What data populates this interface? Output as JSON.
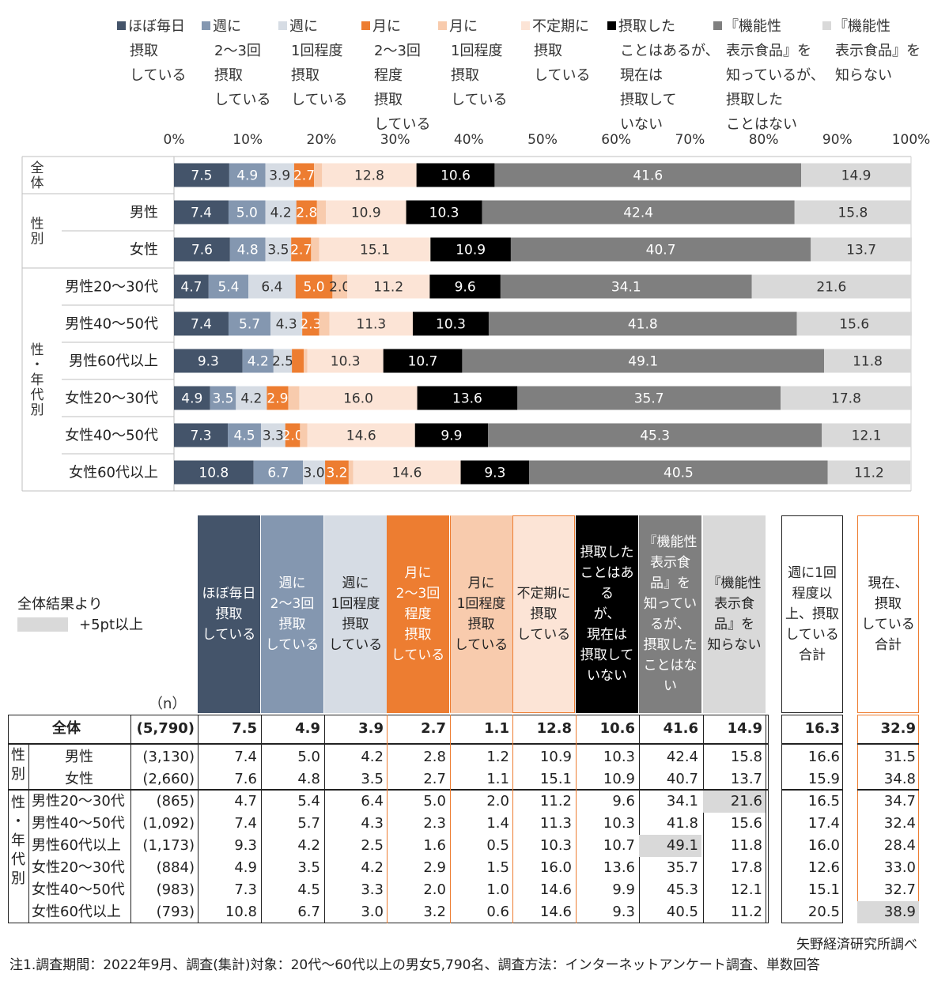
{
  "chart_data": {
    "type": "bar",
    "orientation": "horizontal",
    "stacked": true,
    "xlim": [
      0,
      100
    ],
    "x_ticks": [
      "0%",
      "10%",
      "20%",
      "30%",
      "40%",
      "50%",
      "60%",
      "70%",
      "80%",
      "90%",
      "100%"
    ],
    "groups": [
      {
        "label": "全体",
        "rows": [
          "全体"
        ]
      },
      {
        "label": "性別",
        "rows": [
          "男性",
          "女性"
        ]
      },
      {
        "label": "性・年代別",
        "rows": [
          "男性20～30代",
          "男性40～50代",
          "男性60代以上",
          "女性20～30代",
          "女性40～50代",
          "女性60代以上"
        ]
      }
    ],
    "categories": [
      "全体",
      "男性",
      "女性",
      "男性20～30代",
      "男性40～50代",
      "男性60代以上",
      "女性20～30代",
      "女性40～50代",
      "女性60代以上"
    ],
    "category_labels": [
      "",
      "男性",
      "女性",
      "男性20～30代",
      "男性40～50代",
      "男性60代以上",
      "女性20～30代",
      "女性40～50代",
      "女性60代以上"
    ],
    "series": [
      {
        "name": "ほぼ毎日\n摂取\nしている",
        "color": "#44546a",
        "values": [
          7.5,
          7.4,
          7.6,
          4.7,
          7.4,
          9.3,
          4.9,
          7.3,
          10.8
        ]
      },
      {
        "name": "週に\n2～3回\n摂取\nしている",
        "color": "#8497b0",
        "values": [
          4.9,
          5.0,
          4.8,
          5.4,
          5.7,
          4.2,
          3.5,
          4.5,
          6.7
        ]
      },
      {
        "name": "週に\n1回程度\n摂取\nしている",
        "color": "#d6dce4",
        "values": [
          3.9,
          4.2,
          3.5,
          6.4,
          4.3,
          2.5,
          4.2,
          3.3,
          3.0
        ]
      },
      {
        "name": "月に\n2～3回\n程度\n摂取\nしている",
        "color": "#ed7d31",
        "values": [
          2.7,
          2.8,
          2.7,
          5.0,
          2.3,
          1.6,
          2.9,
          2.0,
          3.2
        ]
      },
      {
        "name": "月に\n1回程度\n摂取\nしている",
        "color": "#f8cbad",
        "values": [
          1.1,
          1.2,
          1.1,
          2.0,
          1.4,
          0.5,
          1.5,
          1.0,
          0.6
        ]
      },
      {
        "name": "不定期に\n摂取\nしている",
        "color": "#fce4d6",
        "values": [
          12.8,
          10.9,
          15.1,
          11.2,
          11.3,
          10.3,
          16.0,
          14.6,
          14.6
        ]
      },
      {
        "name": "摂取した\nことはあるが、\n現在は\n摂取して\nいない",
        "color": "#000000",
        "values": [
          10.6,
          10.3,
          10.9,
          9.6,
          10.3,
          10.7,
          13.6,
          9.9,
          9.3
        ]
      },
      {
        "name": "『機能性\n表示食品』を\n知っているが、\n摂取した\nことはない",
        "color": "#7f7f7f",
        "values": [
          41.6,
          42.4,
          40.7,
          34.1,
          41.8,
          49.1,
          35.7,
          45.3,
          40.5
        ]
      },
      {
        "name": "『機能性\n表示食品』を\n知らない",
        "color": "#d9d9d9",
        "values": [
          14.9,
          15.8,
          13.7,
          21.6,
          15.6,
          11.8,
          17.8,
          12.1,
          11.2
        ]
      }
    ],
    "data_labels": [
      [
        "7.5",
        "4.9",
        "3.9",
        "2.7",
        "",
        "12.8",
        "10.6",
        "41.6",
        "14.9"
      ],
      [
        "7.4",
        "5.0",
        "4.2",
        "2.8",
        "",
        "10.9",
        "10.3",
        "42.4",
        "15.8"
      ],
      [
        "7.6",
        "4.8",
        "3.5",
        "2.7",
        "",
        "15.1",
        "10.9",
        "40.7",
        "13.7"
      ],
      [
        "4.7",
        "5.4",
        "6.4",
        "5.0",
        "2.0",
        "11.2",
        "9.6",
        "34.1",
        "21.6"
      ],
      [
        "7.4",
        "5.7",
        "4.3",
        "2.3",
        "",
        "11.3",
        "10.3",
        "41.8",
        "15.6"
      ],
      [
        "9.3",
        "4.2",
        "2.5",
        "",
        "",
        "10.3",
        "10.7",
        "49.1",
        "11.8"
      ],
      [
        "4.9",
        "3.5",
        "4.2",
        "2.9",
        "",
        "16.0",
        "13.6",
        "35.7",
        "17.8"
      ],
      [
        "7.3",
        "4.5",
        "3.3",
        "2.0",
        "",
        "14.6",
        "9.9",
        "45.3",
        "12.1"
      ],
      [
        "10.8",
        "6.7",
        "3.0",
        "3.2",
        "",
        "14.6",
        "9.3",
        "40.5",
        "11.2"
      ]
    ]
  },
  "table": {
    "legend_note": "全体結果より",
    "legend_highlight": "+5pt以上",
    "n_header": "（n）",
    "headers": [
      {
        "text": "ほぼ毎日\n摂取\nしている",
        "bg": "#44546a",
        "fg": "#ffffff"
      },
      {
        "text": "週に\n2～3回\n摂取\nしている",
        "bg": "#8497b0",
        "fg": "#ffffff"
      },
      {
        "text": "週に\n1回程度\n摂取\nしている",
        "bg": "#d6dce4",
        "fg": "#222222"
      },
      {
        "text": "月に\n2～3回\n程度\n摂取\nしている",
        "bg": "#ed7d31",
        "fg": "#ffffff"
      },
      {
        "text": "月に\n1回程度\n摂取\nしている",
        "bg": "#f8cbad",
        "fg": "#222222"
      },
      {
        "text": "不定期に\n摂取\nしている",
        "bg": "#fce4d6",
        "fg": "#222222"
      },
      {
        "text": "摂取した\nことはある\nが、\n現在は\n摂取して\nいない",
        "bg": "#000000",
        "fg": "#ffffff"
      },
      {
        "text": "『機能性\n表示食\n品』を\n知ってい\nるが、\n摂取した\nことはない",
        "bg": "#7f7f7f",
        "fg": "#ffffff"
      },
      {
        "text": "『機能性\n表示食\n品』を\n知らない",
        "bg": "#d9d9d9",
        "fg": "#222222"
      }
    ],
    "extra_headers": [
      "週に1回\n程度以\n上、摂取\nしている\n合計",
      "現在、\n摂取\nしている\n合計"
    ],
    "groups": [
      {
        "label": "性\n別",
        "rows": [
          1,
          2
        ]
      },
      {
        "label": "性\n・\n年\n代\n別",
        "rows": [
          3,
          4,
          5,
          6,
          7,
          8
        ]
      }
    ],
    "rows": [
      {
        "label": "全体",
        "n": "(5,790)",
        "values": [
          "7.5",
          "4.9",
          "3.9",
          "2.7",
          "1.1",
          "12.8",
          "10.6",
          "41.6",
          "14.9"
        ],
        "extra": [
          "16.3",
          "32.9"
        ],
        "bold": true,
        "hl": []
      },
      {
        "label": "男性",
        "n": "(3,130)",
        "values": [
          "7.4",
          "5.0",
          "4.2",
          "2.8",
          "1.2",
          "10.9",
          "10.3",
          "42.4",
          "15.8"
        ],
        "extra": [
          "16.6",
          "31.5"
        ],
        "hl": []
      },
      {
        "label": "女性",
        "n": "(2,660)",
        "values": [
          "7.6",
          "4.8",
          "3.5",
          "2.7",
          "1.1",
          "15.1",
          "10.9",
          "40.7",
          "13.7"
        ],
        "extra": [
          "15.9",
          "34.8"
        ],
        "hl": []
      },
      {
        "label": "男性20～30代",
        "n": "(865)",
        "values": [
          "4.7",
          "5.4",
          "6.4",
          "5.0",
          "2.0",
          "11.2",
          "9.6",
          "34.1",
          "21.6"
        ],
        "extra": [
          "16.5",
          "34.7"
        ],
        "hl": [
          8
        ]
      },
      {
        "label": "男性40～50代",
        "n": "(1,092)",
        "values": [
          "7.4",
          "5.7",
          "4.3",
          "2.3",
          "1.4",
          "11.3",
          "10.3",
          "41.8",
          "15.6"
        ],
        "extra": [
          "17.4",
          "32.4"
        ],
        "hl": []
      },
      {
        "label": "男性60代以上",
        "n": "(1,173)",
        "values": [
          "9.3",
          "4.2",
          "2.5",
          "1.6",
          "0.5",
          "10.3",
          "10.7",
          "49.1",
          "11.8"
        ],
        "extra": [
          "16.0",
          "28.4"
        ],
        "hl": [
          7
        ]
      },
      {
        "label": "女性20～30代",
        "n": "(884)",
        "values": [
          "4.9",
          "3.5",
          "4.2",
          "2.9",
          "1.5",
          "16.0",
          "13.6",
          "35.7",
          "17.8"
        ],
        "extra": [
          "12.6",
          "33.0"
        ],
        "hl": []
      },
      {
        "label": "女性40～50代",
        "n": "(983)",
        "values": [
          "7.3",
          "4.5",
          "3.3",
          "2.0",
          "1.0",
          "14.6",
          "9.9",
          "45.3",
          "12.1"
        ],
        "extra": [
          "15.1",
          "32.7"
        ],
        "hl": []
      },
      {
        "label": "女性60代以上",
        "n": "(793)",
        "values": [
          "10.8",
          "6.7",
          "3.0",
          "3.2",
          "0.6",
          "14.6",
          "9.3",
          "40.5",
          "11.2"
        ],
        "extra": [
          "20.5",
          "38.9"
        ],
        "hl": [
          10
        ]
      }
    ]
  },
  "source": "矢野経済研究所調べ",
  "note": "注1.調査期間：2022年9月、調査(集計)対象：20代～60代以上の男女5,790名、調査方法：インターネットアンケート調査、単数回答"
}
